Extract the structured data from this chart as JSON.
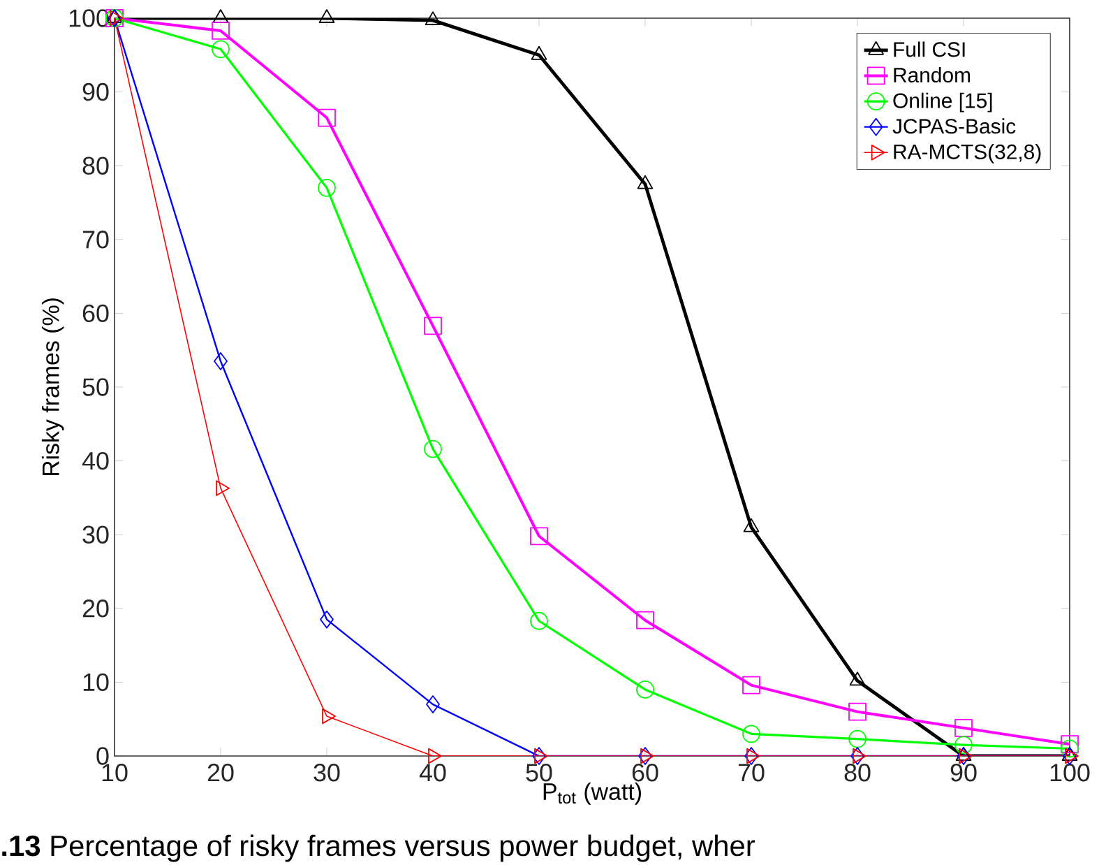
{
  "chart_data": {
    "type": "line",
    "xlabel": "P$_{tot}$ (watt)",
    "ylabel": "Risky frames (%)",
    "x": [
      10,
      20,
      30,
      40,
      50,
      60,
      70,
      80,
      90,
      100
    ],
    "series": [
      {
        "name": "Full CSI",
        "color": "#000000",
        "marker": "triangle",
        "values": [
          100,
          100,
          100,
          99.7,
          95,
          77.5,
          31,
          10.2,
          0,
          0
        ]
      },
      {
        "name": "Random",
        "color": "#ff00ff",
        "marker": "square",
        "values": [
          100,
          98.3,
          86.5,
          58.3,
          29.8,
          18.4,
          9.6,
          6,
          3.8,
          1.6
        ]
      },
      {
        "name": "Online [15]",
        "color": "#00ff00",
        "marker": "circle",
        "values": [
          100,
          95.8,
          77,
          41.6,
          18.3,
          9,
          3,
          2.3,
          1.5,
          1.0
        ]
      },
      {
        "name": "JCPAS-Basic",
        "color": "#0000ff",
        "marker": "diamond",
        "values": [
          100,
          53.5,
          18.5,
          7,
          0,
          0,
          0,
          0,
          0,
          0
        ]
      },
      {
        "name": "RA-MCTS(32,8)",
        "color": "#ff0000",
        "marker": "triangle-right",
        "values": [
          100,
          36.3,
          5.4,
          0,
          0,
          0,
          0,
          0,
          0,
          0
        ]
      }
    ],
    "xlim": [
      10,
      100
    ],
    "xticks": [
      10,
      20,
      30,
      40,
      50,
      60,
      70,
      80,
      90,
      100
    ],
    "ylim": [
      0,
      100
    ],
    "yticks": [
      0,
      10,
      20,
      30,
      40,
      50,
      60,
      70,
      80,
      90,
      100
    ],
    "grid": false,
    "legend": "top right",
    "line_style": "solid",
    "annotations": [
      "**.13**   Percentage of risky frames versus power budget, wher"
    ]
  }
}
